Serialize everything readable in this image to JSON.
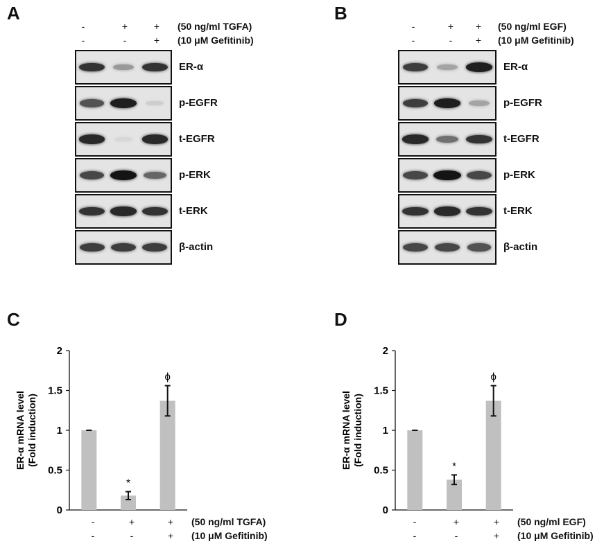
{
  "panels": {
    "A": {
      "letter": "A",
      "treatments": [
        {
          "label": "(50 ng/ml TGFA)",
          "signs": [
            "-",
            "+",
            "+"
          ]
        },
        {
          "label": "(10 μM Gefitinib)",
          "signs": [
            "-",
            "-",
            "+"
          ]
        }
      ],
      "blots": [
        {
          "label": "ER-α",
          "intensity": [
            0.85,
            0.35,
            0.85
          ]
        },
        {
          "label": "p-EGFR",
          "intensity": [
            0.7,
            0.95,
            0.1
          ]
        },
        {
          "label": "t-EGFR",
          "intensity": [
            0.9,
            0.05,
            0.9
          ]
        },
        {
          "label": "p-ERK",
          "intensity": [
            0.75,
            1.0,
            0.6
          ]
        },
        {
          "label": "t-ERK",
          "intensity": [
            0.85,
            0.9,
            0.85
          ]
        },
        {
          "label": "β-actin",
          "intensity": [
            0.8,
            0.8,
            0.8
          ]
        }
      ]
    },
    "B": {
      "letter": "B",
      "treatments": [
        {
          "label": "(50 ng/ml EGF)",
          "signs": [
            "-",
            "+",
            "+"
          ]
        },
        {
          "label": "(10 μM Gefitinib)",
          "signs": [
            "-",
            "-",
            "+"
          ]
        }
      ],
      "blots": [
        {
          "label": "ER-α",
          "intensity": [
            0.8,
            0.3,
            0.95
          ]
        },
        {
          "label": "p-EGFR",
          "intensity": [
            0.8,
            0.95,
            0.3
          ]
        },
        {
          "label": "t-EGFR",
          "intensity": [
            0.9,
            0.55,
            0.85
          ]
        },
        {
          "label": "p-ERK",
          "intensity": [
            0.75,
            1.0,
            0.75
          ]
        },
        {
          "label": "t-ERK",
          "intensity": [
            0.85,
            0.9,
            0.85
          ]
        },
        {
          "label": "β-actin",
          "intensity": [
            0.75,
            0.75,
            0.7
          ]
        }
      ]
    },
    "C": {
      "letter": "C",
      "treatments": [
        {
          "label": "(50 ng/ml TGFA)",
          "signs": [
            "-",
            "+",
            "+"
          ]
        },
        {
          "label": "(10 μM Gefitinib)",
          "signs": [
            "-",
            "-",
            "+"
          ]
        }
      ]
    },
    "D": {
      "letter": "D",
      "treatments": [
        {
          "label": "(50 ng/ml EGF)",
          "signs": [
            "-",
            "+",
            "+"
          ]
        },
        {
          "label": "(10 μM Gefitinib)",
          "signs": [
            "-",
            "-",
            "+"
          ]
        }
      ]
    }
  },
  "chart_data": [
    {
      "type": "bar",
      "panel": "C",
      "title": "",
      "ylabel": "ER-α mRNA level (Fold induction)",
      "ylabel_lines": [
        "ER-α mRNA level",
        "(Fold induction)"
      ],
      "ylim": [
        0,
        2
      ],
      "yticks": [
        "0",
        "0.5",
        "1",
        "1.5",
        "2"
      ],
      "categories": [
        "- / -",
        "+ / -",
        "+ / +"
      ],
      "values": [
        1.0,
        0.18,
        1.37
      ],
      "errors": [
        0.0,
        0.05,
        0.19
      ],
      "annotations": [
        "",
        "*",
        "ϕ"
      ],
      "bar_color": "#c0c0c0"
    },
    {
      "type": "bar",
      "panel": "D",
      "title": "",
      "ylabel": "ER-α mRNA level (Fold induction)",
      "ylabel_lines": [
        "ER-α mRNA level",
        "(Fold induction)"
      ],
      "ylim": [
        0,
        2
      ],
      "yticks": [
        "0",
        "0.5",
        "1",
        "1.5",
        "2"
      ],
      "categories": [
        "- / -",
        "+ / -",
        "+ / +"
      ],
      "values": [
        1.0,
        0.38,
        1.37
      ],
      "errors": [
        0.0,
        0.06,
        0.19
      ],
      "annotations": [
        "",
        "*",
        "ϕ"
      ],
      "bar_color": "#c0c0c0"
    }
  ]
}
